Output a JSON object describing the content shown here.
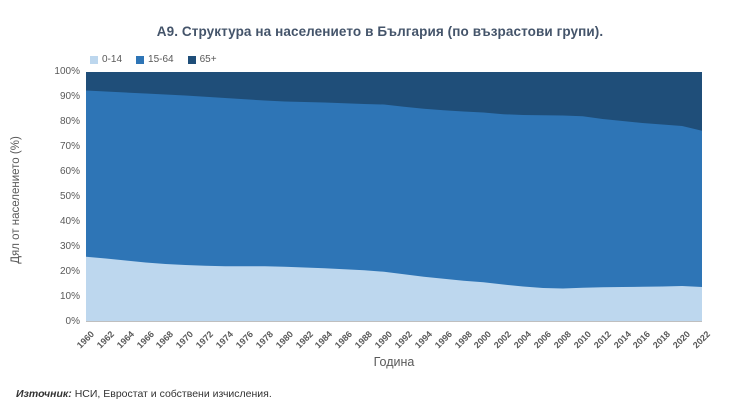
{
  "chart_data": {
    "type": "area",
    "stacked": true,
    "stacked_to_100_percent": true,
    "title": "А9. Структура на населението в България (по възрастови групи).",
    "xlabel": "Година",
    "ylabel": "Дял от населението (%)",
    "ylim": [
      0,
      100
    ],
    "y_ticks": [
      "0%",
      "10%",
      "20%",
      "30%",
      "40%",
      "50%",
      "60%",
      "70%",
      "80%",
      "90%",
      "100%"
    ],
    "legend_position": "top-left",
    "grid": false,
    "categories": [
      "1960",
      "1962",
      "1964",
      "1966",
      "1968",
      "1970",
      "1972",
      "1974",
      "1976",
      "1978",
      "1980",
      "1982",
      "1984",
      "1986",
      "1988",
      "1990",
      "1992",
      "1994",
      "1996",
      "1998",
      "2000",
      "2002",
      "2004",
      "2006",
      "2008",
      "2010",
      "2012",
      "2014",
      "2016",
      "2018",
      "2020",
      "2022"
    ],
    "series": [
      {
        "name": "0-14",
        "color": "#BDD7EE",
        "values": [
          26.1,
          25.4,
          24.6,
          23.8,
          23.2,
          22.8,
          22.5,
          22.3,
          22.3,
          22.3,
          22.1,
          21.8,
          21.5,
          21.1,
          20.7,
          20.1,
          19.1,
          18.1,
          17.3,
          16.5,
          15.9,
          15.0,
          14.2,
          13.6,
          13.4,
          13.7,
          13.9,
          14.0,
          14.1,
          14.2,
          14.4,
          14.0
        ]
      },
      {
        "name": "15-64",
        "color": "#2E75B6",
        "values": [
          66.5,
          66.8,
          67.2,
          67.6,
          67.8,
          67.8,
          67.6,
          67.3,
          66.8,
          66.3,
          66.1,
          66.2,
          66.3,
          66.4,
          66.5,
          66.9,
          67.0,
          67.2,
          67.4,
          67.7,
          67.9,
          68.1,
          68.6,
          69.1,
          69.2,
          68.6,
          67.3,
          66.4,
          65.5,
          64.8,
          64.0,
          62.5
        ]
      },
      {
        "name": "65+",
        "color": "#1F4E79",
        "values": [
          7.4,
          7.8,
          8.2,
          8.6,
          9.0,
          9.4,
          9.9,
          10.4,
          10.9,
          11.4,
          11.8,
          12.0,
          12.2,
          12.5,
          12.8,
          13.0,
          13.9,
          14.7,
          15.3,
          15.8,
          16.2,
          16.9,
          17.2,
          17.3,
          17.4,
          17.7,
          18.8,
          19.6,
          20.4,
          21.0,
          21.6,
          23.5
        ]
      }
    ]
  },
  "footer": {
    "source_label": "Източник:",
    "source_text": "НСИ, Евростат и собствени изчисления."
  },
  "colors": {
    "title": "#44546A",
    "axis_text": "#595959",
    "axis_line": "#BFBFBF"
  }
}
